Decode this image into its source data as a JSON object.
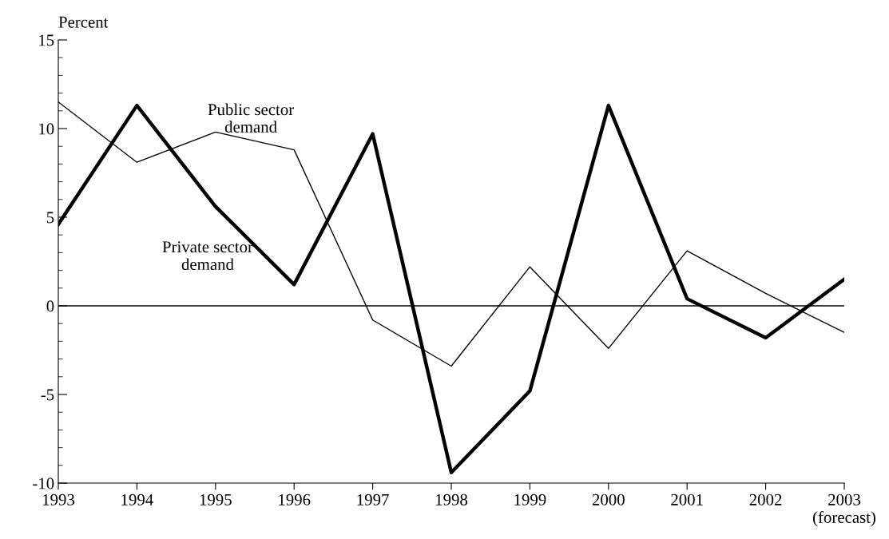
{
  "chart_data": {
    "type": "line",
    "ylabel": "Percent",
    "x": [
      1993,
      1994,
      1995,
      1996,
      1997,
      1998,
      1999,
      2000,
      2001,
      2002,
      2003
    ],
    "series": [
      {
        "name": "Public sector demand",
        "color": "#000000",
        "values": [
          11.5,
          8.1,
          9.8,
          8.8,
          -0.8,
          -3.4,
          2.2,
          -2.4,
          3.1,
          0.7,
          -1.5
        ]
      },
      {
        "name": "Private sector demand",
        "color": "#000000",
        "values": [
          4.6,
          11.3,
          5.6,
          1.2,
          9.7,
          -9.4,
          -4.8,
          11.3,
          0.4,
          -1.8,
          1.5
        ]
      }
    ],
    "xlim": [
      1993,
      2003
    ],
    "xticks": [
      1993,
      1994,
      1995,
      1996,
      1997,
      1998,
      1999,
      2000,
      2001,
      2002,
      {
        "value": 2003,
        "label": "2003\n(forecast)"
      }
    ],
    "ylim": [
      -10,
      15
    ],
    "yticks": [
      -10,
      -5,
      0,
      5,
      10,
      15
    ],
    "ref_lines": [
      {
        "axis": "y",
        "value": 0,
        "color": "#000000"
      }
    ],
    "grid": false,
    "legend": false,
    "marker": "none",
    "line_style": "solid"
  }
}
